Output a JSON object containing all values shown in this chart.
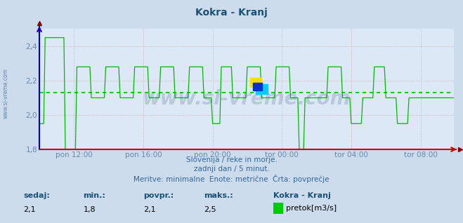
{
  "title": "Kokra - Kranj",
  "title_color": "#1a5276",
  "bg_color": "#ccdcec",
  "plot_bg_color": "#dce8f5",
  "line_color": "#00bb00",
  "avg_line_color": "#00bb00",
  "avg_value": 2.13,
  "ylim": [
    1.8,
    2.5
  ],
  "yticks": [
    1.8,
    2.0,
    2.2,
    2.4
  ],
  "ytick_labels": [
    "1,8",
    "2,0",
    "2,2",
    "2,4"
  ],
  "tick_color": "#6688aa",
  "grid_color": "#cc9999",
  "axis_color_x": "#cc0000",
  "axis_color_y": "#0000cc",
  "watermark": "www.si-vreme.com",
  "caption_line1": "Slovenija / reke in morje.",
  "caption_line2": "zadnji dan / 5 minut.",
  "caption_line3": "Meritve: minimalne  Enote: metrične  Črta: povprečje",
  "caption_color": "#336699",
  "legend_label": "pretok[m3/s]",
  "legend_color": "#00cc00",
  "stat_labels": [
    "sedaj:",
    "min.:",
    "povpr.:",
    "maks.:"
  ],
  "stat_values": [
    "2,1",
    "1,8",
    "2,1",
    "2,5"
  ],
  "stat_label_color": "#1a5276",
  "stat_value_color": "#000000",
  "legend_title": "Kokra - Kranj",
  "xtick_labels": [
    "pon 12:00",
    "pon 16:00",
    "pon 20:00",
    "tor 00:00",
    "tor 04:00",
    "tor 08:00"
  ],
  "n_points": 288,
  "sidebar_text": "www.si-vreme.com",
  "sidebar_color": "#4477aa",
  "logo_yellow": "#ffdd00",
  "logo_cyan": "#00ccff",
  "logo_blue": "#0033cc"
}
